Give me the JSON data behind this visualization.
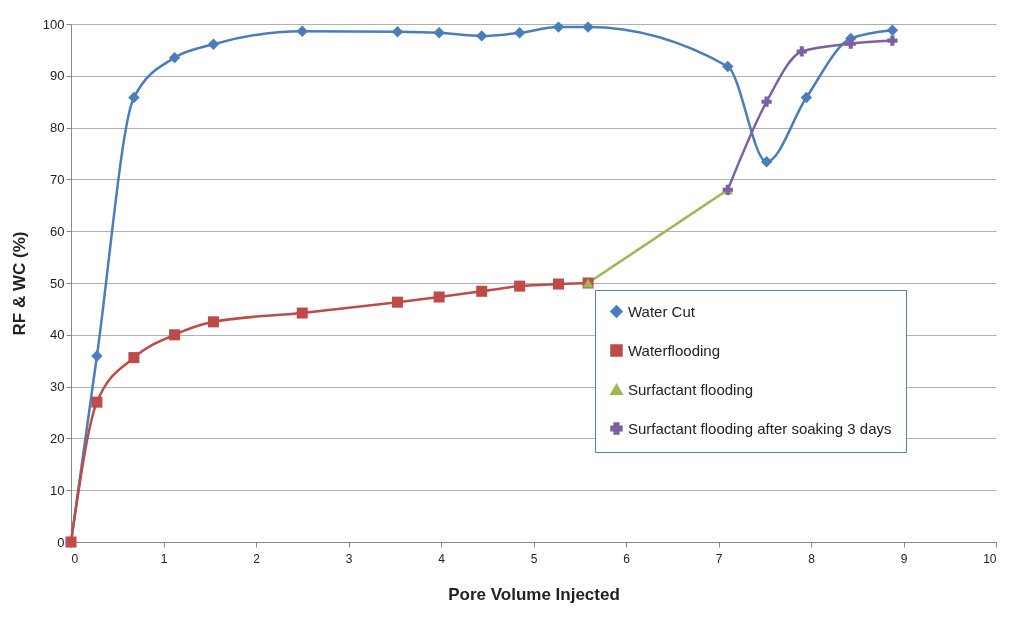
{
  "chart_data": {
    "type": "line",
    "xlabel": "Pore Volume Injected",
    "ylabel": "RF & WC (%)",
    "xlim": [
      0,
      10
    ],
    "xticks": [
      0,
      1,
      2,
      3,
      4,
      5,
      6,
      7,
      8,
      9,
      10
    ],
    "ylim": [
      0,
      100
    ],
    "yticks": [
      0,
      10,
      20,
      30,
      40,
      50,
      60,
      70,
      80,
      90,
      100
    ],
    "grid": "y",
    "legend": "bottom right",
    "series": [
      {
        "name": "Water Cut",
        "color": "#4a7ebb",
        "marker": "diamond",
        "x": [
          0,
          0.28,
          0.68,
          1.12,
          1.54,
          2.5,
          3.53,
          3.98,
          4.44,
          4.85,
          5.27,
          5.59,
          7.1,
          7.52,
          7.95,
          8.43,
          8.88
        ],
        "values": [
          0,
          35.9,
          85.8,
          93.5,
          96.1,
          98.6,
          98.5,
          98.3,
          97.7,
          98.3,
          99.4,
          99.4,
          91.8,
          73.4,
          85.8,
          97.2,
          98.8
        ]
      },
      {
        "name": "Waterflooding",
        "color": "#be4b48",
        "marker": "square",
        "x": [
          0,
          0.28,
          0.68,
          1.12,
          1.54,
          2.5,
          3.53,
          3.98,
          4.44,
          4.85,
          5.27,
          5.59
        ],
        "values": [
          0,
          27,
          35.6,
          40,
          42.5,
          44.2,
          46.3,
          47.3,
          48.4,
          49.4,
          49.8,
          50
        ]
      },
      {
        "name": "Surfactant flooding",
        "color": "#98b954",
        "marker": "triangle",
        "x": [
          5.59,
          7.1
        ],
        "values": [
          50,
          68
        ]
      },
      {
        "name": "Surfactant flooding after soaking 3 days",
        "color": "#7d60a0",
        "marker": "cross",
        "x": [
          7.1,
          7.52,
          7.9,
          8.43,
          8.88
        ],
        "values": [
          68,
          85,
          94.7,
          96.2,
          96.8
        ]
      }
    ]
  }
}
